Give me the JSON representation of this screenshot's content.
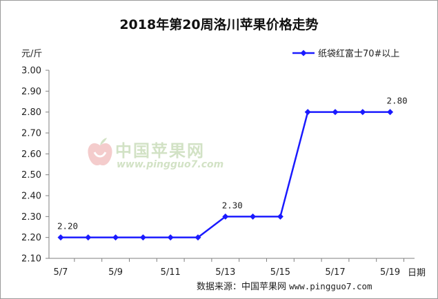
{
  "chart_data": {
    "type": "line",
    "title": "2018年第20周洛川苹果价格走势",
    "ylabel": "元/斤",
    "xlabel": "日期",
    "ylim": [
      2.1,
      3.0
    ],
    "y_ticks": [
      "2.10",
      "2.20",
      "2.30",
      "2.40",
      "2.50",
      "2.60",
      "2.70",
      "2.80",
      "2.90",
      "3.00"
    ],
    "x_tick_labels": [
      "5/7",
      "5/9",
      "5/11",
      "5/13",
      "5/15",
      "5/17",
      "5/19"
    ],
    "categories": [
      "5/7",
      "5/8",
      "5/9",
      "5/10",
      "5/11",
      "5/12",
      "5/13",
      "5/14",
      "5/15",
      "5/16",
      "5/17",
      "5/18",
      "5/19"
    ],
    "series": [
      {
        "name": "纸袋红富士70#以上",
        "values": [
          2.2,
          2.2,
          2.2,
          2.2,
          2.2,
          2.2,
          2.3,
          2.3,
          2.3,
          2.8,
          2.8,
          2.8,
          2.8
        ]
      }
    ],
    "data_labels": [
      {
        "category": "5/7",
        "text": "2.20"
      },
      {
        "category": "5/13",
        "text": "2.30"
      },
      {
        "category": "5/19",
        "text": "2.80"
      }
    ],
    "grid": false,
    "legend_position": "top-right",
    "colors": {
      "series": "#1a1aff",
      "axis": "#7f7f7f"
    }
  },
  "source_label": "数据来源：中国苹果网",
  "source_url": "www.pingguo7.com",
  "watermark": {
    "text": "中国苹果网",
    "url": "www.pingguo7.com"
  }
}
